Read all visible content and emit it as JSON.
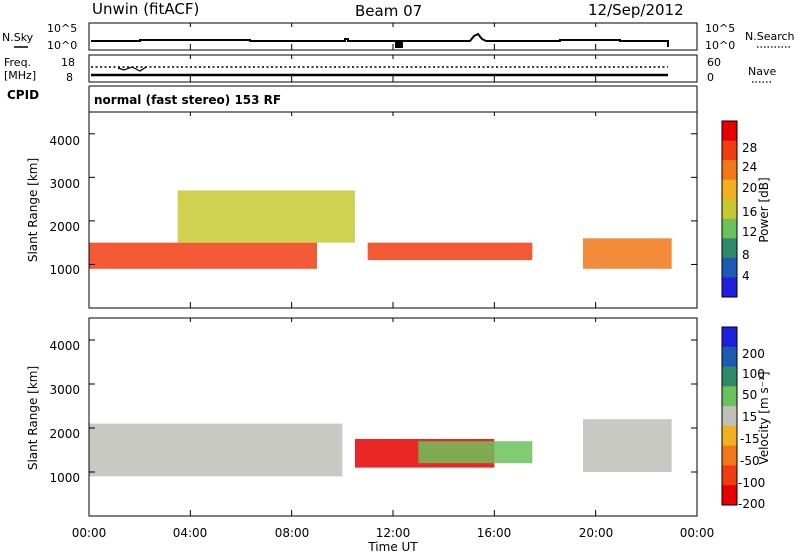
{
  "header": {
    "station": "Unwin (fitACF)",
    "beam": "Beam 07",
    "date": "12/Sep/2012"
  },
  "noise_panel": {
    "left_label_top": "N.Sky",
    "right_label_top": "N.Search",
    "y_ticks_left": [
      "10^5",
      "10^0"
    ],
    "y_ticks_right": [
      "10^5",
      "10^0"
    ]
  },
  "freq_panel": {
    "left_label_line1": "Freq.",
    "left_label_line2": "[MHz]",
    "right_label": "Nave",
    "y_ticks_left": [
      "18",
      "8"
    ],
    "y_ticks_right": [
      "60",
      "0"
    ]
  },
  "cpid": {
    "label": "CPID",
    "value": "normal (fast stereo) 153 RF"
  },
  "x_axis": {
    "label": "Time UT",
    "ticks": [
      "00:00",
      "04:00",
      "08:00",
      "12:00",
      "16:00",
      "20:00",
      "00:00"
    ]
  },
  "colors": {
    "power_scale": [
      "#1e1edc",
      "#1e5ab4",
      "#2e8a6a",
      "#6cc25a",
      "#c8c832",
      "#f0b020",
      "#f07818",
      "#f03c10",
      "#e60000"
    ],
    "velocity_scale": [
      "#1e1edc",
      "#1e5ab4",
      "#2e8a6a",
      "#6cc25a",
      "#c0c0b8",
      "#f0b020",
      "#f07818",
      "#f03c10",
      "#e60000"
    ]
  },
  "chart_data": [
    {
      "type": "heatmap",
      "title": "",
      "xlabel": "",
      "ylabel": "Slant Range [km]",
      "xlim": [
        0,
        24
      ],
      "ylim": [
        0,
        4500
      ],
      "y_ticks": [
        "1000",
        "2000",
        "3000",
        "4000"
      ],
      "colorbar": {
        "label": "Power [dB]",
        "ticks": [
          "4",
          "8",
          "12",
          "16",
          "20",
          "24",
          "28"
        ],
        "range": [
          0,
          30
        ]
      },
      "echo_regions": [
        {
          "t_start": 0.0,
          "t_end": 9.0,
          "range_start": 900,
          "range_end": 1500,
          "level": 26
        },
        {
          "t_start": 3.5,
          "t_end": 10.5,
          "range_start": 1500,
          "range_end": 2700,
          "level": 14
        },
        {
          "t_start": 11.0,
          "t_end": 17.5,
          "range_start": 1100,
          "range_end": 1500,
          "level": 26
        },
        {
          "t_start": 19.5,
          "t_end": 23.0,
          "range_start": 900,
          "range_end": 1600,
          "level": 22
        }
      ]
    },
    {
      "type": "heatmap",
      "title": "",
      "xlabel": "Time UT",
      "ylabel": "Slant Range [km]",
      "xlim": [
        0,
        24
      ],
      "ylim": [
        0,
        4500
      ],
      "y_ticks": [
        "1000",
        "2000",
        "3000",
        "4000"
      ],
      "colorbar": {
        "label": "Velocity [m s⁻¹]",
        "ticks": [
          "200",
          "100",
          "50",
          "15",
          "-15",
          "-50",
          "-100",
          "-200"
        ],
        "range": [
          -250,
          250
        ]
      },
      "echo_regions": [
        {
          "t_start": 0.0,
          "t_end": 10.0,
          "range_start": 900,
          "range_end": 2100,
          "level": 0
        },
        {
          "t_start": 10.5,
          "t_end": 16.0,
          "range_start": 1100,
          "range_end": 1750,
          "level": -200
        },
        {
          "t_start": 13.0,
          "t_end": 17.5,
          "range_start": 1200,
          "range_end": 1700,
          "level": 50
        },
        {
          "t_start": 19.5,
          "t_end": 23.0,
          "range_start": 1000,
          "range_end": 2200,
          "level": 0
        }
      ]
    }
  ]
}
